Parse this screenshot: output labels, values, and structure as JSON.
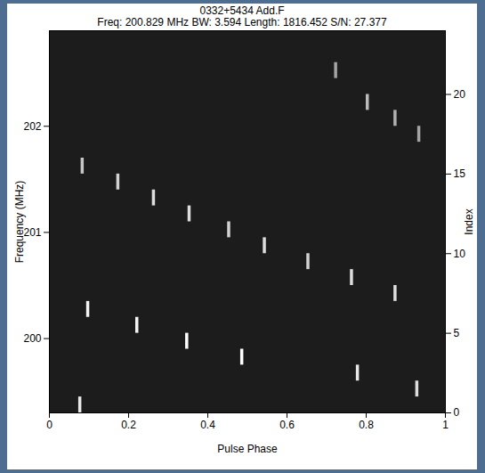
{
  "chart_data": {
    "type": "heatmap",
    "title": "0332+5434 Add.F",
    "subtitle": "Freq: 200.829 MHz BW: 3.594 Length: 1816.452 S/N: 27.377",
    "x_label": "Pulse Phase",
    "y_label": "Frequency (MHz)",
    "y2_label": "Index",
    "xlim": [
      0,
      1
    ],
    "xticks": [
      0,
      0.2,
      0.4,
      0.6,
      0.8,
      1
    ],
    "ylim": [
      199.3,
      202.9
    ],
    "yticks": [
      200,
      201,
      202
    ],
    "y2lim": [
      0,
      24
    ],
    "y2ticks": [
      0,
      5,
      10,
      15,
      20
    ],
    "phase_bins": 128,
    "zlim": [
      0,
      1
    ],
    "cells": [
      [
        0.074,
        0,
        0.9
      ],
      [
        0.925,
        1,
        0.85
      ],
      [
        0.775,
        2,
        0.9
      ],
      [
        0.483,
        3,
        1.0
      ],
      [
        0.344,
        4,
        1.0
      ],
      [
        0.218,
        5,
        0.95
      ],
      [
        0.094,
        6,
        0.95
      ],
      [
        0.87,
        7,
        0.85
      ],
      [
        0.76,
        8,
        0.85
      ],
      [
        0.65,
        9,
        0.8
      ],
      [
        0.54,
        10,
        0.85
      ],
      [
        0.45,
        11,
        0.8
      ],
      [
        0.35,
        12,
        0.85
      ],
      [
        0.26,
        13,
        0.85
      ],
      [
        0.17,
        14,
        0.8
      ],
      [
        0.08,
        15,
        0.75
      ],
      [
        0.93,
        17,
        0.6
      ],
      [
        0.87,
        18,
        0.65
      ],
      [
        0.8,
        19,
        0.7
      ],
      [
        0.72,
        21,
        0.6
      ]
    ]
  }
}
